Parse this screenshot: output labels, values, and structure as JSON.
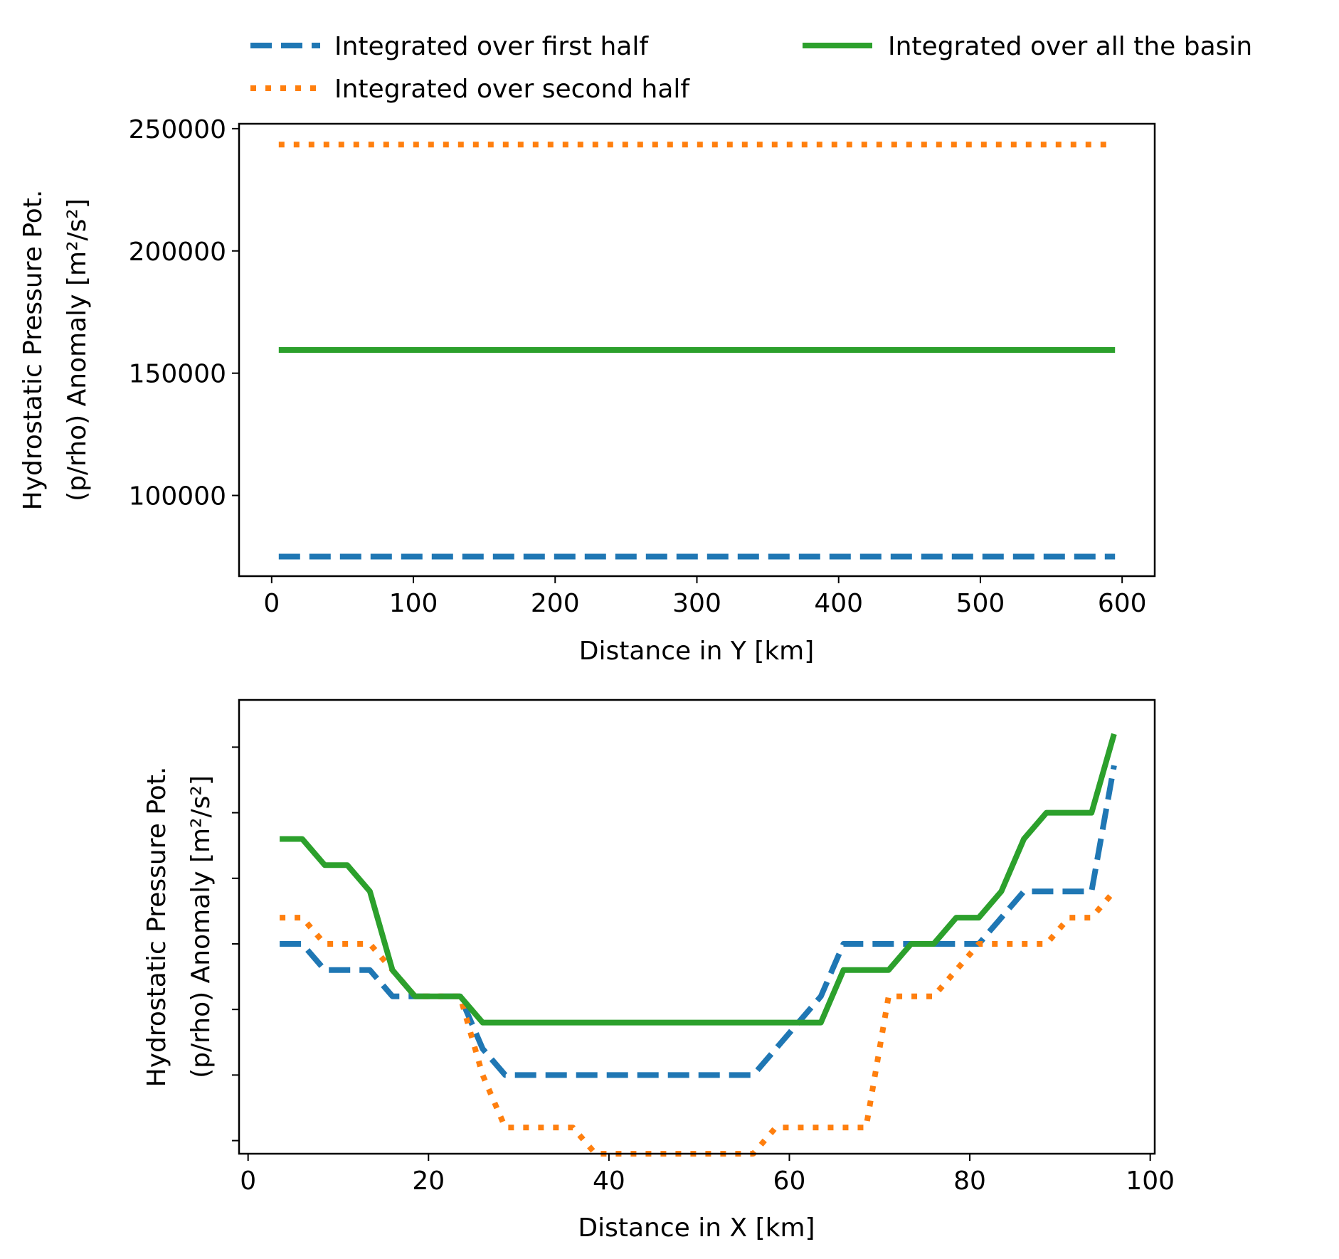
{
  "legend": {
    "placement": "top",
    "entries": [
      {
        "label": "Integrated over first half",
        "color": "#1f77b4",
        "style": "dashed"
      },
      {
        "label": "Integrated over second half",
        "color": "#ff7f0e",
        "style": "dotted"
      },
      {
        "label": "Integrated over all the basin",
        "color": "#2ca02c",
        "style": "solid"
      }
    ]
  },
  "chart_data": [
    {
      "type": "line",
      "xlabel": "Distance in Y [km]",
      "ylabel_line1": "Hydrostatic Pressure Pot.",
      "ylabel_line2": "(p/rho) Anomaly [m²/s²]",
      "xlim": [
        -23,
        623
      ],
      "ylim": [
        67000,
        252000
      ],
      "xticks": [
        0,
        100,
        200,
        300,
        400,
        500,
        600
      ],
      "yticks": [
        100000,
        150000,
        200000,
        250000
      ],
      "grid": false,
      "series": [
        {
          "name": "Integrated over first half",
          "color": "#1f77b4",
          "style": "dashed",
          "x": [
            5,
            595
          ],
          "y": [
            75000,
            75000
          ]
        },
        {
          "name": "Integrated over second half",
          "color": "#ff7f0e",
          "style": "dotted",
          "x": [
            5,
            595
          ],
          "y": [
            243500,
            243500
          ]
        },
        {
          "name": "Integrated over all the basin",
          "color": "#2ca02c",
          "style": "solid",
          "x": [
            5,
            595
          ],
          "y": [
            159500,
            159500
          ]
        }
      ]
    },
    {
      "type": "line",
      "xlabel": "Distance in X [km]",
      "ylabel_line1": "Hydrostatic Pressure Pot.",
      "ylabel_line2": "(p/rho) Anomaly [m²/s²]",
      "xlim": [
        -1,
        100.5
      ],
      "ylim": [
        -0.5,
        16.8
      ],
      "xticks": [
        0,
        20,
        40,
        60,
        80,
        100
      ],
      "yticks": [
        0,
        2.5,
        5,
        7.5,
        10,
        12.5,
        15
      ],
      "ytick_labels_shown": false,
      "grid": false,
      "series": [
        {
          "name": "Integrated over first half",
          "color": "#1f77b4",
          "style": "dashed",
          "x": [
            3.5,
            6,
            8.5,
            11,
            13.5,
            16,
            18.5,
            21,
            23.5,
            26,
            28.5,
            31,
            56,
            58.5,
            61,
            63.5,
            66,
            68.5,
            71,
            73.5,
            76,
            78.5,
            81,
            83.5,
            86,
            88.5,
            91,
            93.5,
            96
          ],
          "y": [
            7.5,
            7.5,
            6.5,
            6.5,
            6.5,
            5.5,
            5.5,
            5.5,
            5.5,
            3.5,
            2.5,
            2.5,
            2.5,
            3.5,
            4.5,
            5.5,
            7.5,
            7.5,
            7.5,
            7.5,
            7.5,
            7.5,
            7.5,
            8.5,
            9.5,
            9.5,
            9.5,
            9.5,
            14.3
          ]
        },
        {
          "name": "Integrated over second half",
          "color": "#ff7f0e",
          "style": "dotted",
          "x": [
            3.5,
            6,
            8.5,
            11,
            13.5,
            16,
            18.5,
            21,
            23.5,
            26,
            28.5,
            31,
            33.5,
            36,
            38.5,
            56,
            58.5,
            61,
            63.5,
            66,
            68.5,
            71,
            73.5,
            76,
            78.5,
            81,
            83.5,
            86,
            88.5,
            91,
            93.5,
            96
          ],
          "y": [
            8.5,
            8.5,
            7.5,
            7.5,
            7.5,
            6.5,
            5.5,
            5.5,
            5.5,
            2.5,
            0.5,
            0.5,
            0.5,
            0.5,
            -0.5,
            -0.5,
            0.5,
            0.5,
            0.5,
            0.5,
            0.5,
            5.5,
            5.5,
            5.5,
            6.5,
            7.5,
            7.5,
            7.5,
            7.5,
            8.5,
            8.5,
            9.5
          ]
        },
        {
          "name": "Integrated over all the basin",
          "color": "#2ca02c",
          "style": "solid",
          "x": [
            3.5,
            6,
            8.5,
            11,
            13.5,
            16,
            18.5,
            21,
            23.5,
            26,
            28.5,
            63.5,
            66,
            68.5,
            71,
            73.5,
            76,
            78.5,
            81,
            83.5,
            86,
            88.5,
            91,
            93.5,
            96
          ],
          "y": [
            11.5,
            11.5,
            10.5,
            10.5,
            9.5,
            6.5,
            5.5,
            5.5,
            5.5,
            4.5,
            4.5,
            4.5,
            6.5,
            6.5,
            6.5,
            7.5,
            7.5,
            8.5,
            8.5,
            9.5,
            11.5,
            12.5,
            12.5,
            12.5,
            15.5
          ]
        }
      ]
    }
  ]
}
